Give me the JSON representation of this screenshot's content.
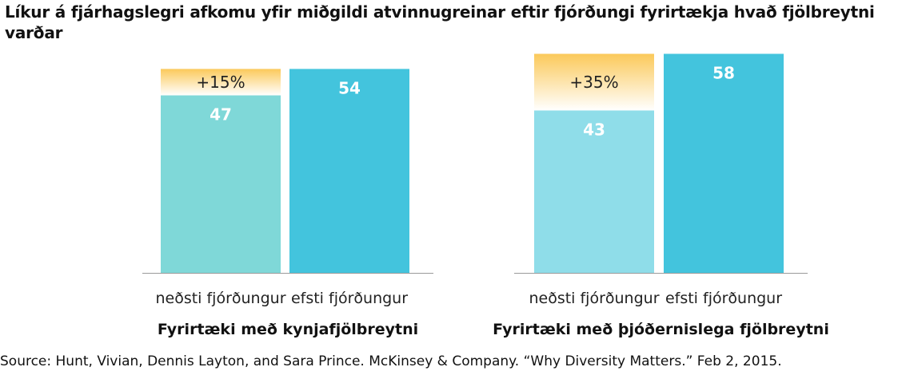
{
  "chart_data": {
    "type": "bar",
    "title": "Líkur á fjárhagslegri afkomu yfir miðgildi atvinnugreinar eftir fjórðungi fyrirtækja hvað fjölbreytni varðar",
    "ylim": [
      0,
      60
    ],
    "groups": [
      {
        "name": "Fyrirtæki með kynjafjölbreytni",
        "categories": [
          "neðsti fjórðungur",
          "efsti fjórðungur"
        ],
        "values": [
          47,
          54
        ],
        "uplift_label": "+15%",
        "colors": [
          "#7fd8d8",
          "#43c4dd"
        ]
      },
      {
        "name": "Fyrirtæki með þjóðernislega fjölbreytni",
        "categories": [
          "neðsti fjórðungur",
          "efsti fjórðungur"
        ],
        "values": [
          43,
          58
        ],
        "uplift_label": "+35%",
        "colors": [
          "#8fdde9",
          "#43c4dd"
        ]
      }
    ],
    "uplift_gradient": [
      "#fbc95a",
      "#ffffff"
    ],
    "grid": false,
    "legend": "none"
  },
  "source": "Source: Hunt, Vivian, Dennis Layton, and Sara Prince. McKinsey & Company. “Why Diversity Matters.” Feb 2, 2015."
}
